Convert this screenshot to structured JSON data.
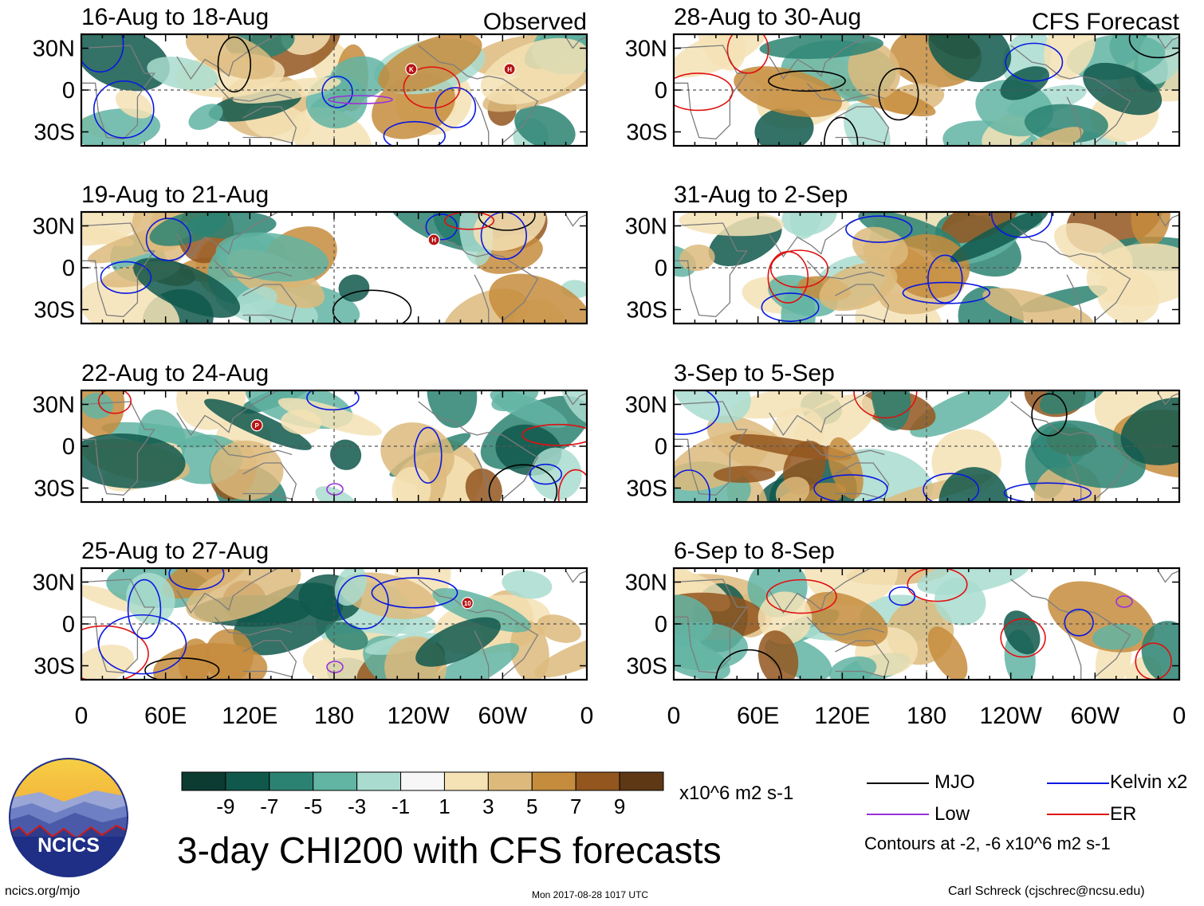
{
  "chart_data": {
    "type": "heatmap",
    "title": "3-day CHI200 with CFS forecasts",
    "column_labels": {
      "left": "Observed",
      "right": "CFS Forecast"
    },
    "x_ticks": [
      "0",
      "60E",
      "120E",
      "180",
      "120W",
      "60W",
      "0"
    ],
    "y_ticks": [
      "30N",
      "0",
      "30S"
    ],
    "x_range_deg_east": [
      0,
      360
    ],
    "y_range_deg_lat": [
      -40,
      40
    ],
    "panels": [
      {
        "period": "16-Aug to 18-Aug",
        "column": "Observed",
        "storm_markers": [
          "K",
          "H"
        ]
      },
      {
        "period": "19-Aug to 21-Aug",
        "column": "Observed",
        "storm_markers": [
          "H"
        ]
      },
      {
        "period": "22-Aug to 24-Aug",
        "column": "Observed",
        "storm_markers": [
          "P"
        ]
      },
      {
        "period": "25-Aug to 27-Aug",
        "column": "Observed",
        "storm_markers": [
          "10"
        ]
      },
      {
        "period": "28-Aug to 30-Aug",
        "column": "CFS Forecast",
        "storm_markers": []
      },
      {
        "period": "31-Aug to 2-Sep",
        "column": "CFS Forecast",
        "storm_markers": []
      },
      {
        "period": "3-Sep to 5-Sep",
        "column": "CFS Forecast",
        "storm_markers": []
      },
      {
        "period": "6-Sep to 8-Sep",
        "column": "CFS Forecast",
        "storm_markers": []
      }
    ],
    "colorbar": {
      "tick_labels": [
        "-9",
        "-7",
        "-5",
        "-3",
        "-1",
        "1",
        "3",
        "5",
        "7",
        "9"
      ],
      "units": "x10^6 m2 s-1",
      "colors": [
        "#0c3b32",
        "#10584c",
        "#2c8272",
        "#62b4a3",
        "#a9dccf",
        "#f7f7f7",
        "#f5e2b5",
        "#ddba7c",
        "#c68c3d",
        "#93561e",
        "#5e3815"
      ]
    },
    "legend": [
      {
        "label": "MJO",
        "color": "#000000"
      },
      {
        "label": "Kelvin x2",
        "color": "#0a18e0"
      },
      {
        "label": "Low",
        "color": "#9b30d9"
      },
      {
        "label": "ER",
        "color": "#e01010"
      }
    ],
    "contour_note": "Contours at -2, -6 x10^6 m2 s-1"
  },
  "logo_text": "NCICS",
  "footer": {
    "left": "ncics.org/mjo",
    "center": "Mon 2017-08-28 1017 UTC",
    "right": "Carl Schreck (cjschrec@ncsu.edu)"
  }
}
